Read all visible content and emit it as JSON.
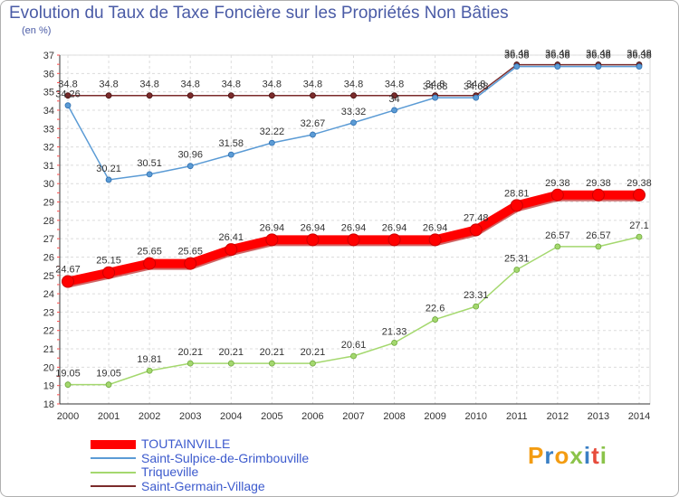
{
  "chart_data": {
    "type": "line",
    "title": "Evolution du Taux de Taxe Foncière sur les Propriétés Non Bâties",
    "ylabel": "(en %)",
    "categories": [
      "2000",
      "2001",
      "2002",
      "2003",
      "2004",
      "2005",
      "2006",
      "2007",
      "2008",
      "2009",
      "2010",
      "2011",
      "2012",
      "2013",
      "2014"
    ],
    "ylim": [
      18,
      37
    ],
    "yticks": [
      18,
      19,
      20,
      21,
      22,
      23,
      24,
      25,
      26,
      27,
      28,
      29,
      30,
      31,
      32,
      33,
      34,
      35,
      36,
      37
    ],
    "series": [
      {
        "name": "TOUTAINVILLE",
        "color": "#ff0000",
        "width": 10,
        "values": [
          24.67,
          25.15,
          25.65,
          25.65,
          26.41,
          26.94,
          26.94,
          26.94,
          26.94,
          26.94,
          27.48,
          28.81,
          29.38,
          29.38,
          29.38
        ],
        "labels": [
          "24.67",
          "25.15",
          "25.65",
          "25.65",
          "26.41",
          "26.94",
          "26.94",
          "26.94",
          "26.94",
          "26.94",
          "27.48",
          "28.81",
          "29.38",
          "29.38",
          "29.38"
        ]
      },
      {
        "name": "Saint-Sulpice-de-Grimbouville",
        "color": "#5b9bd5",
        "width": 1.5,
        "values": [
          34.26,
          30.21,
          30.51,
          30.96,
          31.58,
          32.22,
          32.67,
          33.32,
          34.0,
          34.68,
          34.68,
          36.38,
          36.38,
          36.38,
          36.38
        ],
        "labels": [
          "34.26",
          "30.21",
          "30.51",
          "30.96",
          "31.58",
          "32.22",
          "32.67",
          "33.32",
          "34",
          "34.68",
          "34.68",
          "36.38",
          "36.38",
          "36.38",
          "36.38"
        ]
      },
      {
        "name": "Triqueville",
        "color": "#a4d86e",
        "width": 1.5,
        "values": [
          19.05,
          19.05,
          19.81,
          20.21,
          20.21,
          20.21,
          20.21,
          20.61,
          21.33,
          22.6,
          23.31,
          25.31,
          26.57,
          26.57,
          27.1
        ],
        "labels": [
          "19.05",
          "19.05",
          "19.81",
          "20.21",
          "20.21",
          "20.21",
          "20.21",
          "20.61",
          "21.33",
          "22.6",
          "23.31",
          "25.31",
          "26.57",
          "26.57",
          "27.1"
        ]
      },
      {
        "name": "Saint-Germain-Village",
        "color": "#7b2b2b",
        "width": 1.5,
        "values": [
          34.8,
          34.8,
          34.8,
          34.8,
          34.8,
          34.8,
          34.8,
          34.8,
          34.8,
          34.8,
          34.8,
          36.48,
          36.48,
          36.48,
          36.48
        ],
        "labels": [
          "34.8",
          "34.8",
          "34.8",
          "34.8",
          "34.8",
          "34.8",
          "34.8",
          "34.8",
          "34.8",
          "34.8",
          "34.8",
          "36.48",
          "36.48",
          "36.48",
          "36.48"
        ]
      }
    ]
  },
  "logo_text": "Proxiti"
}
